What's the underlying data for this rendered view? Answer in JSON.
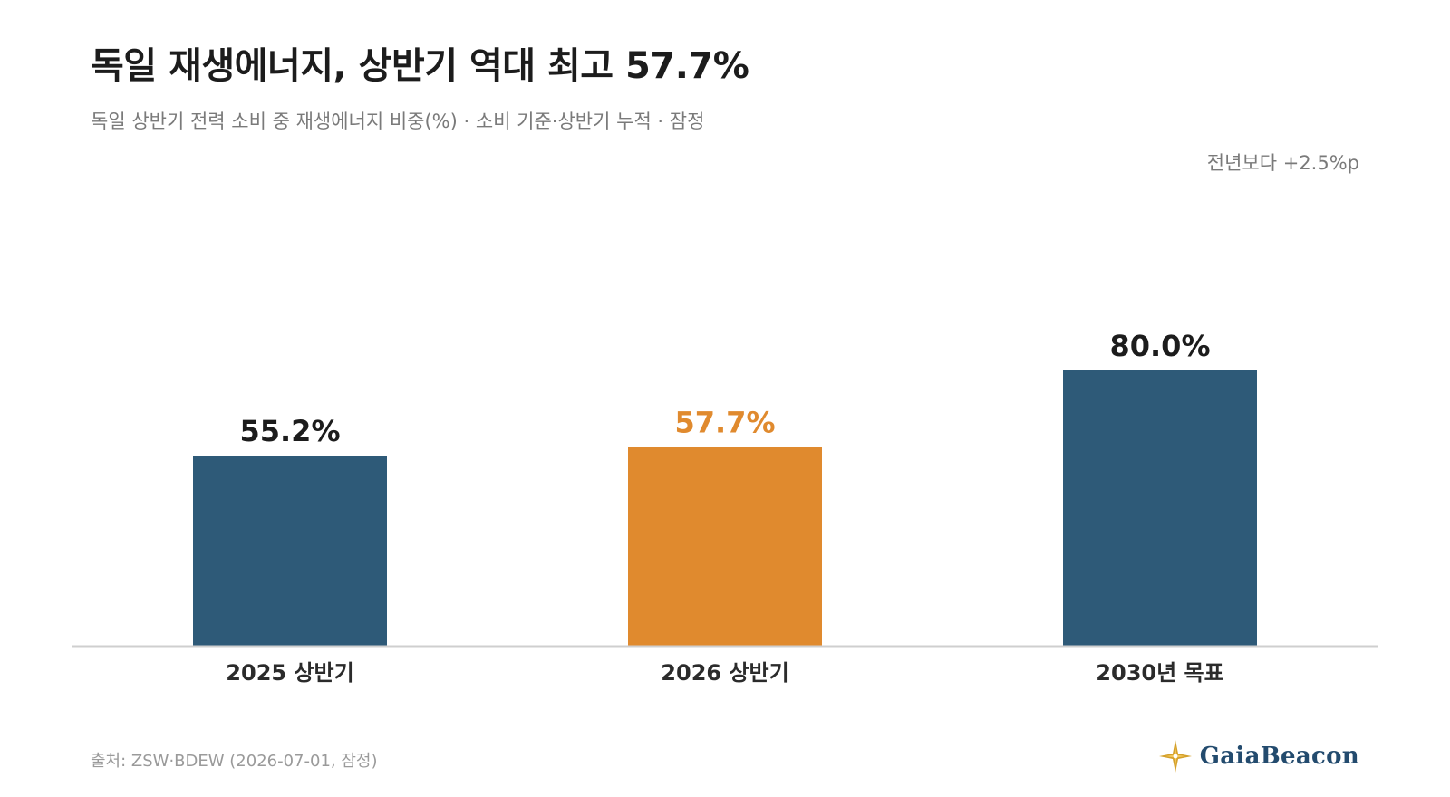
{
  "header": {
    "title": "독일 재생에너지, 상반기 역대 최고 57.7%",
    "subtitle": "독일 상반기 전력 소비 중 재생에너지 비중(%) · 소비 기준·상반기 누적 · 잠정",
    "delta_note": "전년보다 +2.5%p"
  },
  "footer": {
    "source": "출처: ZSW·BDEW (2026-07-01, 잠정)",
    "brand": "GaiaBeacon",
    "brand_icon": "compass-star-icon"
  },
  "colors": {
    "base_bar": "#2e5a78",
    "highlight_bar": "#e08a2e",
    "highlight_label": "#e08a2e",
    "value_label": "#1c1c1c",
    "axis": "#cfcfcf",
    "brand": "#234b6e"
  },
  "chart_data": {
    "type": "bar",
    "categories": [
      "2025 상반기",
      "2026 상반기",
      "2030년 목표"
    ],
    "values": [
      55.2,
      57.7,
      80.0
    ],
    "value_labels": [
      "55.2%",
      "57.7%",
      "80.0%"
    ],
    "highlight_index": 1,
    "ylim": [
      0,
      100
    ],
    "grid": false,
    "legend": "none",
    "xlabel": "",
    "ylabel": ""
  }
}
